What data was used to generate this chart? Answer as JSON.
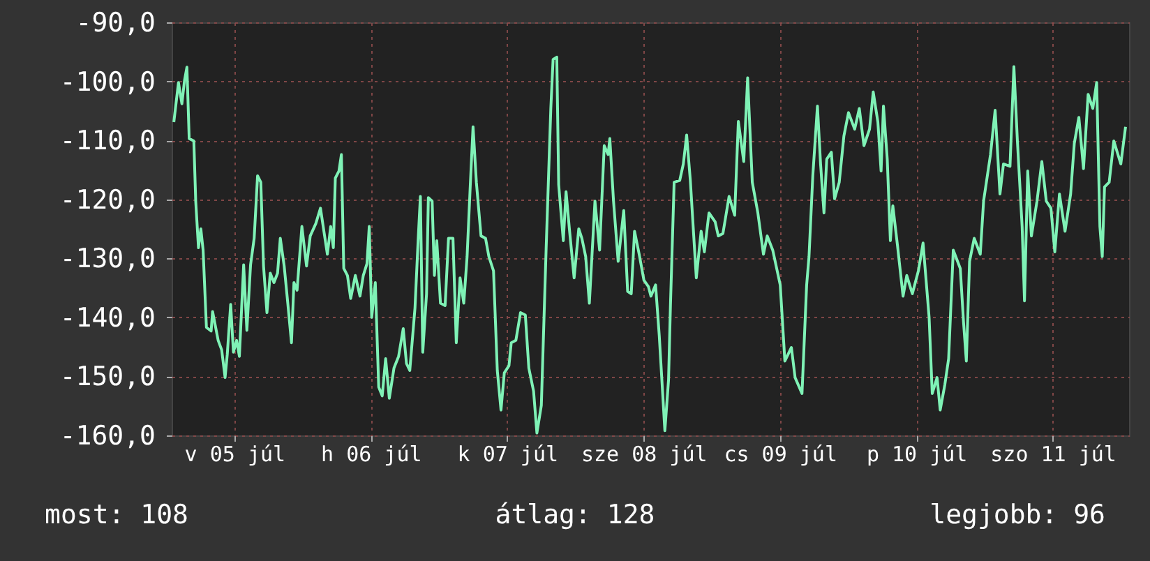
{
  "chart_data": {
    "type": "line",
    "x": [
      "--07-05T01:21",
      "--07-05T02:10",
      "--07-05T02:46",
      "--07-05T03:14",
      "--07-05T03:39",
      "--07-05T04:03",
      "--07-05T04:52",
      "--07-05T05:12",
      "--07-05T05:41",
      "--07-05T06:06",
      "--07-05T06:30",
      "--07-05T07:05",
      "--07-05T07:55",
      "--07-05T08:10",
      "--07-05T09:09",
      "--07-05T09:46",
      "--07-05T10:22",
      "--07-05T10:45",
      "--07-05T11:21",
      "--07-05T11:50",
      "--07-05T12:24",
      "--07-05T12:53",
      "--07-05T13:38",
      "--07-05T14:12",
      "--07-05T14:51",
      "--07-05T15:29",
      "--07-05T16:05",
      "--07-05T16:39",
      "--07-05T17:08",
      "--07-05T17:44",
      "--07-05T18:19",
      "--07-05T18:58",
      "--07-05T19:36",
      "--07-05T20:05",
      "--07-05T20:46",
      "--07-05T21:24",
      "--07-05T22:03",
      "--07-05T22:29",
      "--07-05T23:02",
      "--07-05T23:53",
      "--07-06T00:42",
      "--07-06T01:21",
      "--07-06T02:20",
      "--07-06T03:09",
      "--07-06T03:49",
      "--07-06T04:22",
      "--07-06T04:57",
      "--07-06T05:25",
      "--07-06T05:46",
      "--07-06T06:24",
      "--07-06T06:50",
      "--07-06T07:15",
      "--07-06T07:54",
      "--07-06T08:28",
      "--07-06T09:17",
      "--07-06T10:06",
      "--07-06T10:41",
      "--07-06T11:20",
      "--07-06T11:44",
      "--07-06T12:10",
      "--07-06T12:48",
      "--07-06T13:24",
      "--07-06T14:01",
      "--07-06T14:37",
      "--07-06T15:16",
      "--07-06T16:05",
      "--07-06T16:54",
      "--07-06T17:43",
      "--07-06T18:17",
      "--07-06T18:52",
      "--07-06T19:47",
      "--07-06T20:20",
      "--07-06T20:44",
      "--07-06T21:09",
      "--07-06T21:49",
      "--07-06T22:08",
      "--07-06T22:48",
      "--07-06T23:12",
      "--07-06T23:37",
      "--07-07T00:16",
      "--07-07T01:05",
      "--07-07T01:41",
      "--07-07T02:28",
      "--07-07T03:03",
      "--07-07T03:43",
      "--07-07T04:22",
      "--07-07T04:57",
      "--07-07T05:30",
      "--07-07T06:00",
      "--07-07T06:35",
      "--07-07T07:24",
      "--07-07T08:12",
      "--07-07T08:47",
      "--07-07T09:36",
      "--07-07T10:16",
      "--07-07T10:55",
      "--07-07T11:30",
      "--07-07T12:19",
      "--07-07T12:43",
      "--07-07T13:32",
      "--07-07T14:21",
      "--07-07T15:12",
      "--07-07T15:49",
      "--07-07T16:39",
      "--07-07T17:14",
      "--07-07T18:01",
      "--07-07T18:52",
      "--07-07T19:41",
      "--07-07T20:05",
      "--07-07T20:44",
      "--07-07T21:04",
      "--07-07T21:53",
      "--07-07T22:22",
      "--07-07T22:57",
      "--07-07T23:47",
      "--07-08T00:36",
      "--07-08T01:09",
      "--07-08T01:49",
      "--07-08T02:28",
      "--07-08T03:27",
      "--07-08T04:16",
      "--07-08T05:05",
      "--07-08T05:46",
      "--07-08T06:04",
      "--07-08T06:43",
      "--07-08T07:32",
      "--07-08T08:31",
      "--07-08T09:12",
      "--07-08T09:50",
      "--07-08T10:25",
      "--07-08T11:14",
      "--07-08T12:04",
      "--07-08T12:52",
      "--07-08T13:18",
      "--07-08T14:07",
      "--07-08T14:46",
      "--07-08T15:45",
      "--07-08T16:24",
      "--07-08T16:44",
      "--07-08T17:23",
      "--07-08T18:22",
      "--07-08T19:00",
      "--07-08T19:35",
      "--07-08T20:14",
      "--07-08T21:17",
      "--07-08T22:08",
      "--07-08T22:42",
      "--07-08T23:31",
      "--07-09T00:36",
      "--07-09T01:09",
      "--07-09T01:58",
      "--07-09T03:03",
      "--07-09T04:02",
      "--07-09T04:41",
      "--07-09T05:38",
      "--07-09T06:19",
      "--07-09T07:08",
      "--07-09T08:07",
      "--07-09T09:06",
      "--07-09T09:46",
      "--07-09T10:44",
      "--07-09T12:03",
      "--07-09T12:52",
      "--07-09T14:01",
      "--07-09T14:40",
      "--07-09T15:53",
      "--07-09T16:42",
      "--07-09T17:07",
      "--07-09T17:47",
      "--07-09T18:36",
      "--07-09T19:09",
      "--07-09T19:45",
      "--07-09T20:14",
      "--07-09T21:03",
      "--07-09T21:37",
      "--07-09T22:26",
      "--07-09T23:15",
      "--07-10T00:04",
      "--07-10T01:09",
      "--07-10T01:58",
      "--07-10T02:47",
      "--07-10T03:46",
      "--07-10T04:25",
      "--07-10T05:14",
      "--07-10T05:48",
      "--07-10T06:13",
      "--07-10T06:53",
      "--07-10T07:26",
      "--07-10T07:52",
      "--07-10T08:41",
      "--07-10T09:40",
      "--07-10T10:19",
      "--07-10T11:18",
      "--07-10T12:22",
      "--07-10T13:11",
      "--07-10T14:15",
      "--07-10T14:48",
      "--07-10T15:39",
      "--07-10T16:12",
      "--07-10T17:01",
      "--07-10T17:41",
      "--07-10T18:30",
      "--07-10T19:44",
      "--07-10T20:18",
      "--07-10T20:48",
      "--07-10T21:22",
      "--07-10T22:11",
      "--07-10T23:15",
      "--07-10T23:50",
      "--07-11T01:03",
      "--07-11T01:52",
      "--07-11T02:43",
      "--07-11T03:20",
      "--07-11T04:29",
      "--07-11T05:10",
      "--07-11T05:47",
      "--07-11T06:37",
      "--07-11T07:02",
      "--07-11T07:36",
      "--07-11T08:15",
      "--07-11T09:14",
      "--07-11T10:05",
      "--07-11T10:52",
      "--07-11T11:41",
      "--07-11T12:22",
      "--07-11T13:11",
      "--07-11T14:10",
      "--07-11T15:09",
      "--07-11T15:48",
      "--07-11T16:36",
      "--07-11T17:25",
      "--07-11T18:14",
      "--07-11T19:03",
      "--07-11T19:44",
      "--07-11T20:18",
      "--07-11T20:43",
      "--07-11T21:07",
      "--07-11T21:56",
      "--07-11T22:45",
      "--07-11T23:59",
      "--07-12T00:49"
    ],
    "series": [
      {
        "color": "#7ff2b6",
        "values": [
          -106.9,
          -100.2,
          -103.8,
          -99.8,
          -97.6,
          -109.7,
          -110.1,
          -120.3,
          -128.2,
          -125.0,
          -128.6,
          -141.7,
          -142.3,
          -139.0,
          -143.9,
          -145.5,
          -150.2,
          -146.3,
          -137.8,
          -145.9,
          -143.9,
          -146.6,
          -131.1,
          -142.2,
          -131.1,
          -126.6,
          -116.0,
          -117.1,
          -131.3,
          -139.2,
          -132.5,
          -134.1,
          -132.5,
          -126.6,
          -131.3,
          -137.6,
          -144.3,
          -134.1,
          -135.4,
          -124.6,
          -131.3,
          -126.2,
          -124.1,
          -121.5,
          -125.8,
          -129.3,
          -124.6,
          -128.2,
          -116.4,
          -115.2,
          -112.4,
          -131.7,
          -132.9,
          -136.8,
          -132.9,
          -136.4,
          -132.9,
          -130.9,
          -124.6,
          -140.0,
          -134.1,
          -151.8,
          -153.3,
          -147.0,
          -153.7,
          -148.6,
          -146.6,
          -141.9,
          -147.8,
          -149.0,
          -138.4,
          -127.0,
          -119.5,
          -145.9,
          -136.0,
          -119.7,
          -120.3,
          -132.9,
          -127.0,
          -137.6,
          -138.0,
          -126.6,
          -126.6,
          -144.3,
          -133.3,
          -137.6,
          -129.7,
          -117.9,
          -107.7,
          -117.1,
          -126.2,
          -126.6,
          -129.7,
          -132.1,
          -149.0,
          -155.7,
          -149.4,
          -148.2,
          -144.3,
          -143.9,
          -139.2,
          -139.6,
          -148.6,
          -152.5,
          -159.6,
          -154.9,
          -128.2,
          -104.6,
          -96.3,
          -95.9,
          -117.5,
          -127.0,
          -118.7,
          -125.0,
          -133.3,
          -125.0,
          -126.6,
          -129.7,
          -137.6,
          -120.3,
          -128.6,
          -110.9,
          -112.4,
          -109.7,
          -120.3,
          -130.5,
          -121.9,
          -135.6,
          -136.0,
          -125.4,
          -129.3,
          -133.7,
          -134.8,
          -136.4,
          -134.5,
          -143.1,
          -159.2,
          -150.6,
          -138.0,
          -117.1,
          -116.8,
          -114.0,
          -109.1,
          -116.8,
          -133.3,
          -125.4,
          -128.9,
          -122.3,
          -123.8,
          -126.2,
          -125.8,
          -119.5,
          -122.7,
          -106.8,
          -113.6,
          -99.4,
          -117.1,
          -122.3,
          -129.3,
          -126.2,
          -128.6,
          -134.5,
          -147.4,
          -145.1,
          -150.2,
          -152.9,
          -134.5,
          -129.7,
          -116.0,
          -104.2,
          -114.0,
          -122.3,
          -113.2,
          -112.0,
          -119.9,
          -117.1,
          -109.3,
          -105.3,
          -108.1,
          -104.6,
          -110.9,
          -108.1,
          -101.8,
          -106.9,
          -115.2,
          -104.2,
          -113.2,
          -127.0,
          -121.1,
          -127.8,
          -136.4,
          -132.9,
          -136.0,
          -132.1,
          -127.4,
          -140.0,
          -152.9,
          -150.2,
          -155.7,
          -151.4,
          -147.0,
          -128.6,
          -131.7,
          -140.7,
          -147.4,
          -130.5,
          -126.6,
          -129.3,
          -120.3,
          -112.4,
          -104.9,
          -119.1,
          -114.0,
          -114.4,
          -97.5,
          -110.1,
          -124.6,
          -137.2,
          -115.2,
          -126.2,
          -120.3,
          -113.6,
          -120.3,
          -121.5,
          -128.9,
          -119.1,
          -125.4,
          -119.1,
          -110.5,
          -106.1,
          -114.8,
          -102.2,
          -104.6,
          -100.2,
          -124.6,
          -129.7,
          -117.9,
          -117.1,
          -110.1,
          -114.0,
          -107.7
        ]
      }
    ],
    "xlim": [
      "--07-05T00:58",
      "--07-12T01:26"
    ],
    "xticks": [
      {
        "value": "--07-05T12:00",
        "label": "v 05 júl"
      },
      {
        "value": "--07-06T12:00",
        "label": "h 06 júl"
      },
      {
        "value": "--07-07T12:00",
        "label": "k 07 júl"
      },
      {
        "value": "--07-08T12:00",
        "label": "sze 08 júl"
      },
      {
        "value": "--07-09T12:00",
        "label": "cs 09 júl"
      },
      {
        "value": "--07-10T12:00",
        "label": "p 10 júl"
      },
      {
        "value": "--07-11T12:00",
        "label": "szo 11 júl"
      }
    ],
    "ylim": [
      -160,
      -90
    ],
    "yticks": [
      {
        "value": -160,
        "label": "-160,0"
      },
      {
        "value": -150,
        "label": "-150,0"
      },
      {
        "value": -140,
        "label": "-140,0"
      },
      {
        "value": -130,
        "label": "-130,0"
      },
      {
        "value": -120,
        "label": "-120,0"
      },
      {
        "value": -110,
        "label": "-110,0"
      },
      {
        "value": -100,
        "label": "-100,0"
      },
      {
        "value": -90,
        "label": "-90,0"
      }
    ],
    "grid": true,
    "annotations": [
      "most: 108",
      "átlag: 128",
      "legjobb: 96"
    ]
  }
}
